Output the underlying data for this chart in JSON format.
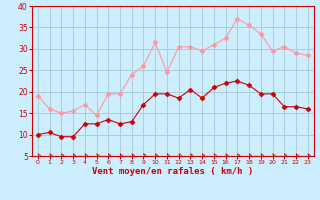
{
  "x": [
    0,
    1,
    2,
    3,
    4,
    5,
    6,
    7,
    8,
    9,
    10,
    11,
    12,
    13,
    14,
    15,
    16,
    17,
    18,
    19,
    20,
    21,
    22,
    23
  ],
  "wind_avg": [
    10,
    10.5,
    9.5,
    9.5,
    12.5,
    12.5,
    13.5,
    12.5,
    13,
    17,
    19.5,
    19.5,
    18.5,
    20.5,
    18.5,
    21,
    22,
    22.5,
    21.5,
    19.5,
    19.5,
    16.5,
    16.5,
    16
  ],
  "wind_gust": [
    19,
    16,
    15,
    15.5,
    17,
    14.5,
    19.5,
    19.5,
    24,
    26,
    31.5,
    24.5,
    30.5,
    30.5,
    29.5,
    31,
    32.5,
    37,
    35.5,
    33.5,
    29.5,
    30.5,
    29,
    28.5
  ],
  "bg_color": "#cceeff",
  "grid_color": "#aaccdd",
  "line_avg_color": "#cc0000",
  "line_gust_color": "#ff9999",
  "xlabel": "Vent moyen/en rafales ( km/h )",
  "xlabel_color": "#cc0000",
  "tick_color": "#cc0000",
  "ylim": [
    5,
    40
  ],
  "yticks": [
    5,
    10,
    15,
    20,
    25,
    30,
    35,
    40
  ],
  "xlim": [
    -0.5,
    23.5
  ]
}
